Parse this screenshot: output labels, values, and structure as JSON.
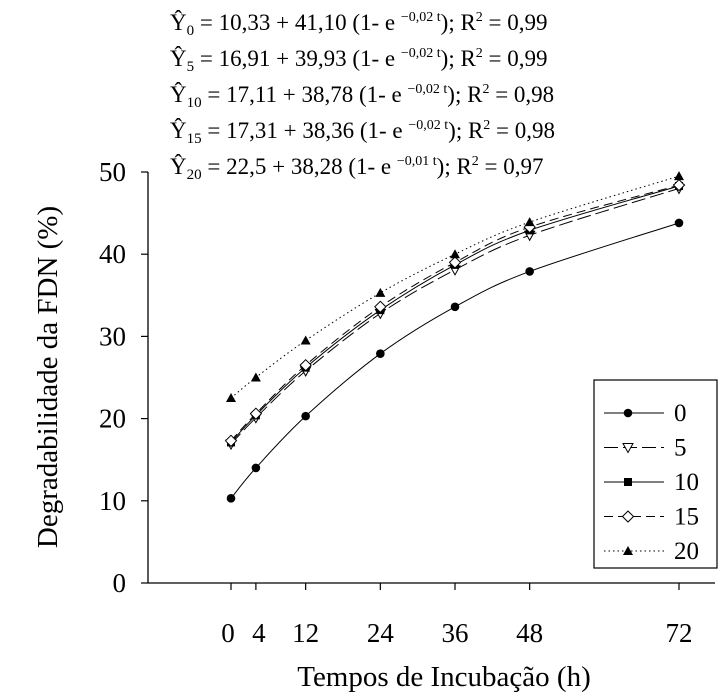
{
  "chart_data": {
    "type": "line",
    "title": "",
    "xlabel": "Tempos de Incubação (h)",
    "ylabel": "Degradabilidade da FDN (%)",
    "ylim": [
      0,
      50
    ],
    "xlim": [
      0,
      72
    ],
    "y_ticks": [
      0,
      10,
      20,
      30,
      40,
      50
    ],
    "x_ticks": [
      0,
      4,
      12,
      24,
      36,
      48,
      72
    ],
    "x": [
      0,
      4,
      12,
      24,
      36,
      48,
      72
    ],
    "legend_position": "bottom-right",
    "grid": false,
    "series": [
      {
        "name": "0",
        "marker": "filled-circle",
        "line": "solid",
        "values": [
          10.3,
          14.0,
          20.3,
          27.9,
          33.6,
          37.9,
          43.8
        ]
      },
      {
        "name": "5",
        "marker": "open-triangle-down",
        "line": "long-dash",
        "values": [
          16.9,
          20.1,
          25.8,
          32.8,
          38.1,
          42.3,
          48.0
        ]
      },
      {
        "name": "10",
        "marker": "filled-square",
        "line": "solid",
        "values": [
          17.1,
          20.4,
          26.2,
          33.2,
          38.7,
          42.9,
          48.3
        ]
      },
      {
        "name": "15",
        "marker": "open-diamond",
        "line": "dash",
        "values": [
          17.3,
          20.6,
          26.5,
          33.6,
          39.0,
          43.3,
          48.4
        ]
      },
      {
        "name": "20",
        "marker": "filled-triangle-up",
        "line": "dotted",
        "values": [
          22.5,
          25.0,
          29.5,
          35.3,
          40.0,
          43.9,
          49.5
        ]
      }
    ],
    "equations": [
      {
        "label": "Ŷ",
        "sub": "0",
        "text": " = 10,33 + 41,10 (1- e ",
        "exp": "−0,02 t",
        "tail": "); R",
        "r2sup": "2",
        "r2": " = 0,99"
      },
      {
        "label": "Ŷ",
        "sub": "5",
        "text": " = 16,91 + 39,93 (1- e ",
        "exp": "−0,02 t",
        "tail": "); R",
        "r2sup": "2",
        "r2": " = 0,99"
      },
      {
        "label": "Ŷ",
        "sub": "10",
        "text": " = 17,11 + 38,78 (1- e ",
        "exp": "−0,02 t",
        "tail": "); R",
        "r2sup": "2",
        "r2": " = 0,98"
      },
      {
        "label": "Ŷ",
        "sub": "15",
        "text": " = 17,31 + 38,36 (1- e ",
        "exp": "−0,02 t",
        "tail": "); R",
        "r2sup": "2",
        "r2": " = 0,98"
      },
      {
        "label": "Ŷ",
        "sub": "20",
        "text": " = 22,5 + 38,28 (1- e ",
        "exp": "−0,01 t",
        "tail": "); R",
        "r2sup": "2",
        "r2": " = 0,97"
      }
    ]
  }
}
